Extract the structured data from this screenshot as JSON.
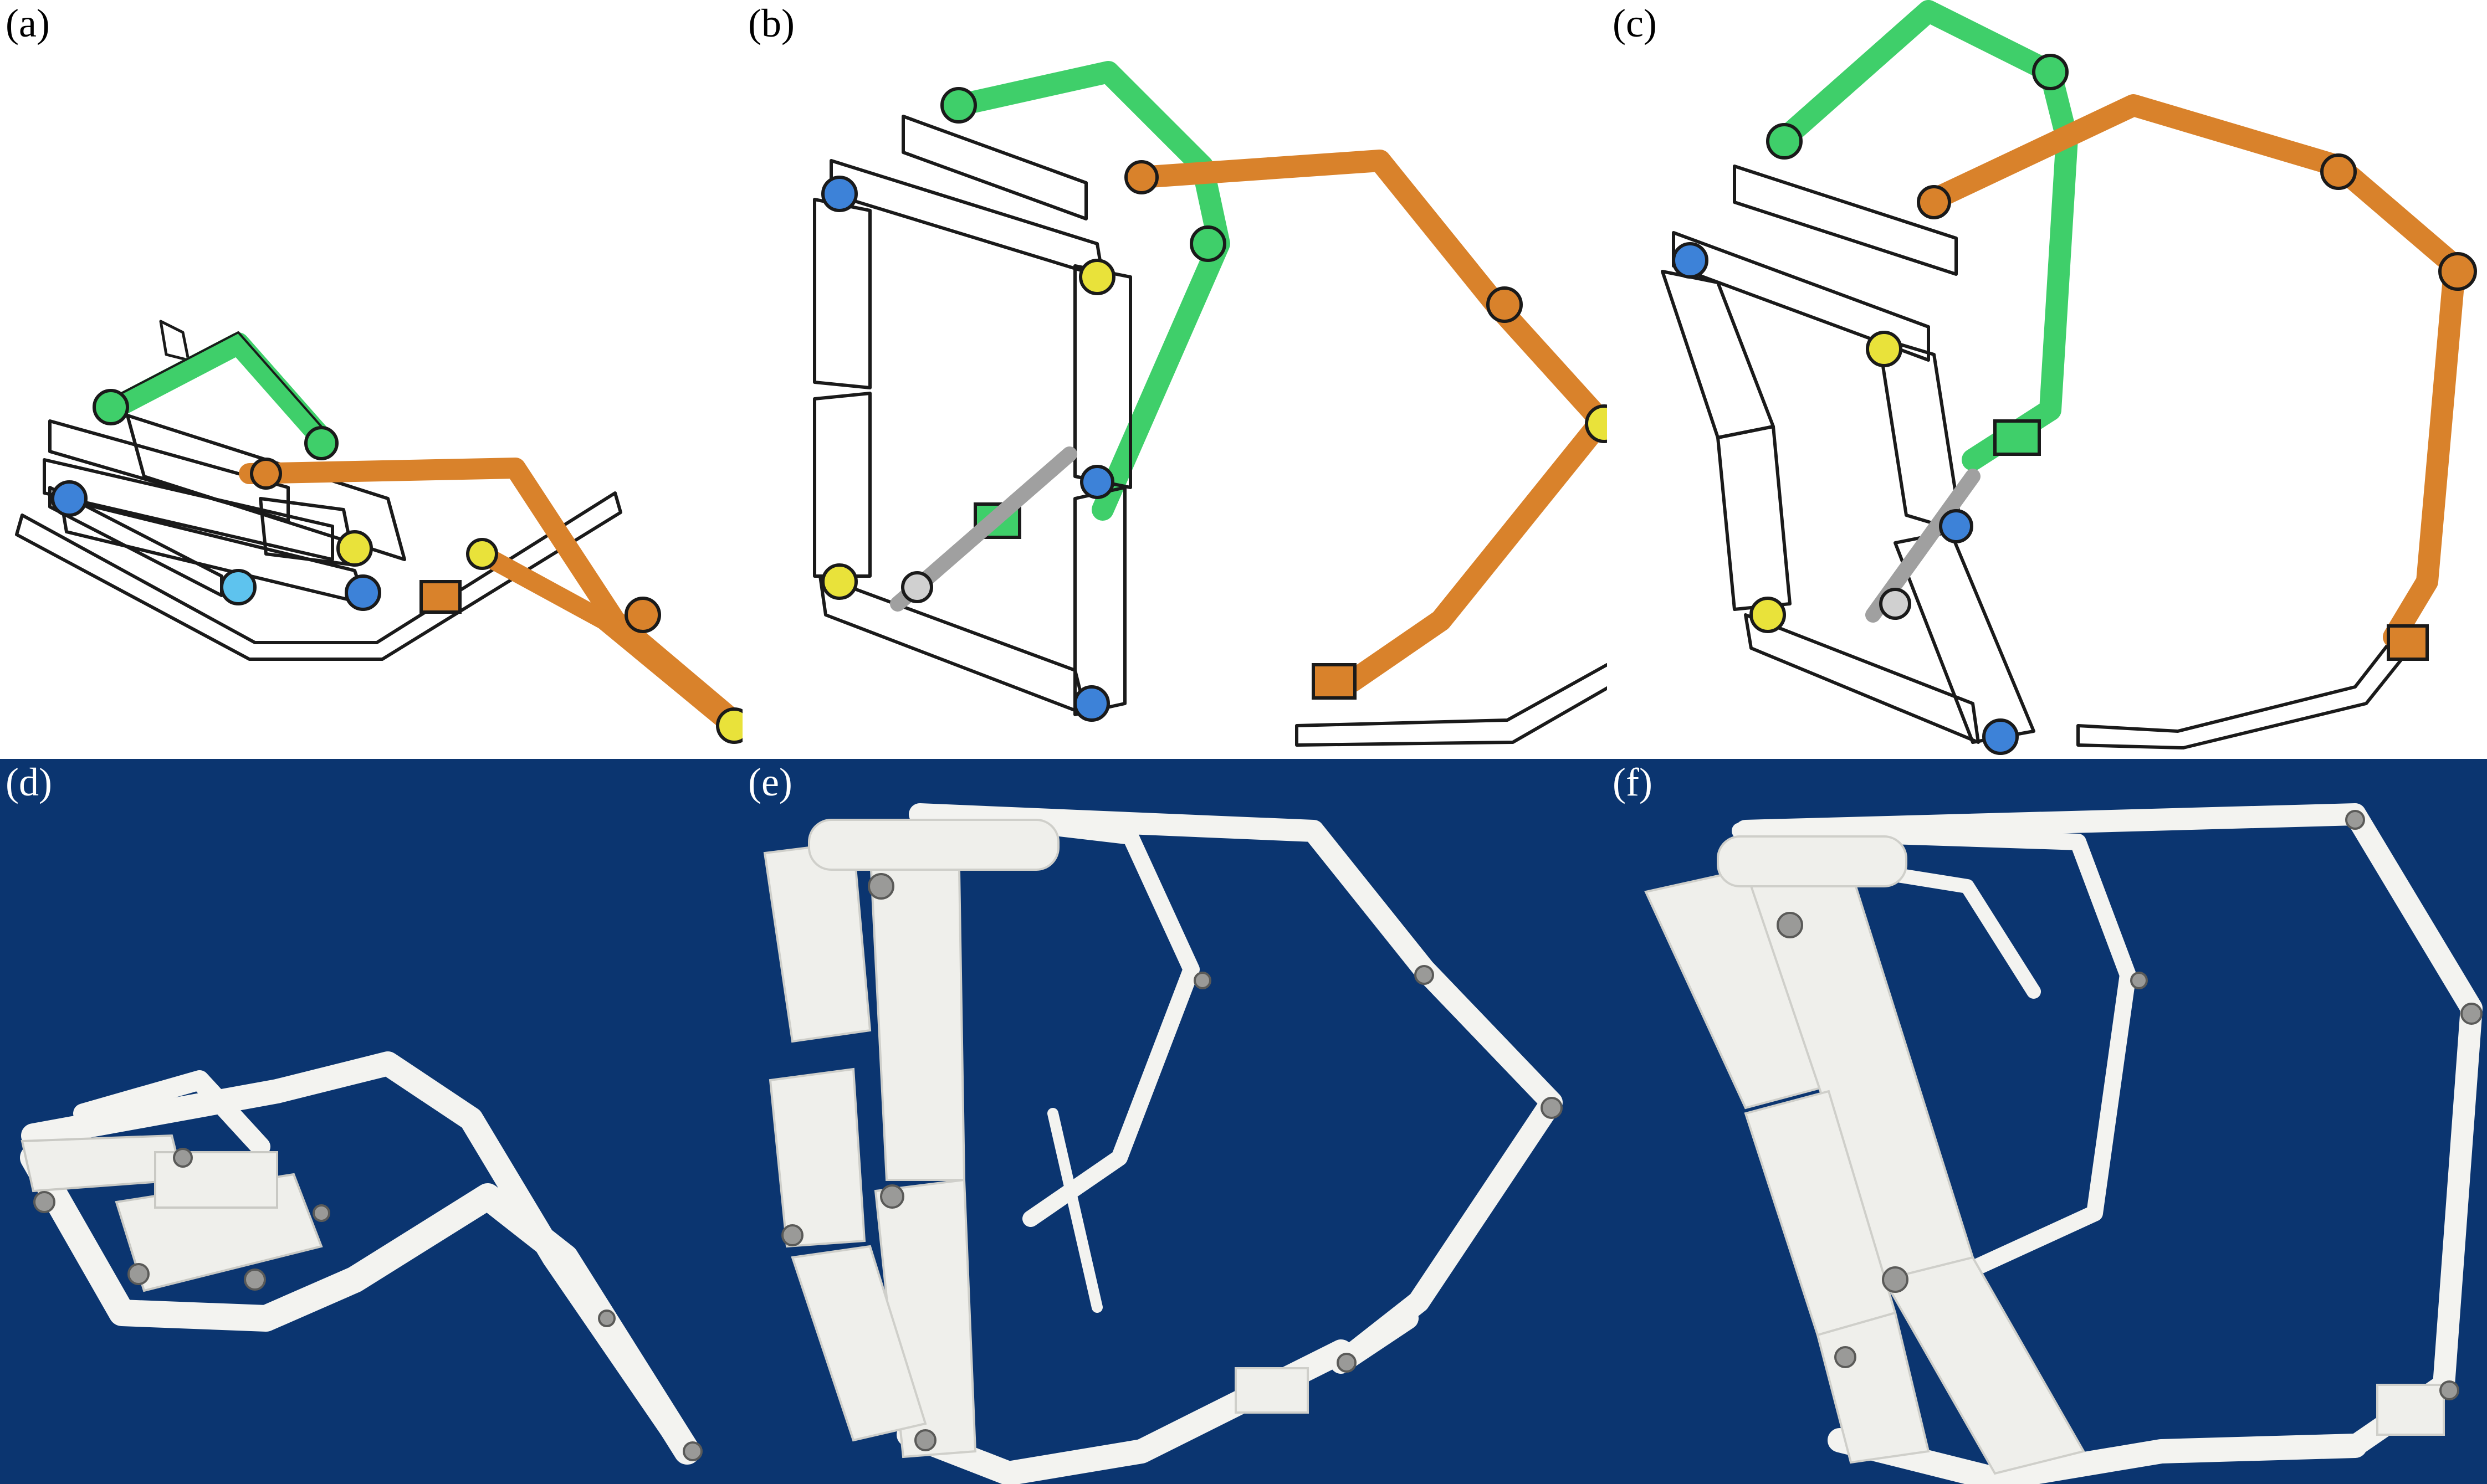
{
  "panels": [
    {
      "label": "(a)",
      "kind": "cad-render",
      "state": "folded"
    },
    {
      "label": "(b)",
      "kind": "cad-render",
      "state": "partially-deployed"
    },
    {
      "label": "(c)",
      "kind": "cad-render",
      "state": "deployed"
    },
    {
      "label": "(d)",
      "kind": "prototype-photo",
      "state": "folded"
    },
    {
      "label": "(e)",
      "kind": "prototype-photo",
      "state": "partially-deployed"
    },
    {
      "label": "(f)",
      "kind": "prototype-photo",
      "state": "deployed"
    }
  ],
  "colors": {
    "photo_background": "#0b3570",
    "link_green": "#3fcf6a",
    "link_orange": "#d9822b",
    "link_yellow": "#e9e23a",
    "link_blue": "#3d82d8",
    "link_lightblue": "#5ec3ee",
    "link_gray": "#b4b4b4",
    "prototype_white": "#f3f3f0"
  }
}
